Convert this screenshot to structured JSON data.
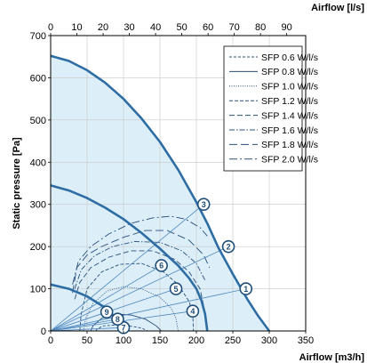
{
  "chart_data": {
    "type": "line",
    "x_bottom": {
      "label": "Airflow [m3/h]",
      "range": [
        0,
        350
      ],
      "ticks": [
        0,
        50,
        100,
        150,
        200,
        250,
        300,
        350
      ]
    },
    "x_top": {
      "label": "Airflow [l/s]",
      "range": [
        0,
        97.22
      ],
      "ticks": [
        0,
        10,
        20,
        30,
        40,
        50,
        60,
        70,
        80,
        90
      ]
    },
    "y": {
      "label": "Static pressure [Pa]",
      "range": [
        0,
        700
      ],
      "ticks": [
        0,
        100,
        200,
        300,
        400,
        500,
        600,
        700
      ]
    },
    "grid": true,
    "legend_position": "top-right",
    "area_fill": "#dceff9",
    "curve_color": "#2e6da4",
    "fan_curves": [
      {
        "points": [
          [
            0,
            652
          ],
          [
            25,
            640
          ],
          [
            50,
            618
          ],
          [
            75,
            588
          ],
          [
            100,
            550
          ],
          [
            125,
            503
          ],
          [
            150,
            448
          ],
          [
            175,
            382
          ],
          [
            200,
            305
          ],
          [
            215,
            255
          ],
          [
            230,
            198
          ],
          [
            250,
            135
          ],
          [
            270,
            75
          ],
          [
            285,
            35
          ],
          [
            300,
            0
          ]
        ]
      },
      {
        "points": [
          [
            0,
            345
          ],
          [
            25,
            333
          ],
          [
            50,
            315
          ],
          [
            75,
            292
          ],
          [
            100,
            265
          ],
          [
            125,
            232
          ],
          [
            150,
            195
          ],
          [
            175,
            155
          ],
          [
            190,
            125
          ],
          [
            200,
            100
          ],
          [
            207,
            72
          ],
          [
            212,
            40
          ],
          [
            215,
            0
          ]
        ]
      },
      {
        "points": [
          [
            0,
            110
          ],
          [
            25,
            100
          ],
          [
            50,
            82
          ],
          [
            75,
            55
          ],
          [
            90,
            30
          ],
          [
            98,
            10
          ],
          [
            100,
            0
          ]
        ]
      }
    ],
    "operating_lines": [
      {
        "points": [
          [
            0,
            0
          ],
          [
            268,
            100
          ]
        ]
      },
      {
        "points": [
          [
            0,
            0
          ],
          [
            244,
            200
          ]
        ]
      },
      {
        "points": [
          [
            0,
            0
          ],
          [
            210,
            300
          ]
        ]
      },
      {
        "points": [
          [
            0,
            0
          ],
          [
            195,
            47
          ]
        ]
      },
      {
        "points": [
          [
            0,
            0
          ],
          [
            172,
            100
          ]
        ]
      },
      {
        "points": [
          [
            0,
            0
          ],
          [
            152,
            155
          ]
        ]
      },
      {
        "points": [
          [
            0,
            0
          ],
          [
            100,
            8
          ]
        ]
      },
      {
        "points": [
          [
            0,
            0
          ],
          [
            92,
            28
          ]
        ]
      },
      {
        "points": [
          [
            0,
            0
          ],
          [
            77,
            45
          ]
        ]
      }
    ],
    "operating_points": [
      {
        "label": "1",
        "x": 268,
        "y": 100
      },
      {
        "label": "2",
        "x": 244,
        "y": 200
      },
      {
        "label": "3",
        "x": 210,
        "y": 300
      },
      {
        "label": "4",
        "x": 195,
        "y": 47
      },
      {
        "label": "5",
        "x": 172,
        "y": 100
      },
      {
        "label": "6",
        "x": 152,
        "y": 155
      },
      {
        "label": "7",
        "x": 100,
        "y": 8
      },
      {
        "label": "8",
        "x": 92,
        "y": 28
      },
      {
        "label": "9",
        "x": 77,
        "y": 45
      }
    ],
    "series": [
      {
        "name": "SFP 0.6 W/l/s",
        "dash": "3,2",
        "width": 0.9,
        "points": [
          [
            62,
            0
          ],
          [
            64,
            5
          ],
          [
            72,
            12
          ],
          [
            88,
            14
          ],
          [
            108,
            12
          ],
          [
            125,
            7
          ],
          [
            133,
            0
          ]
        ]
      },
      {
        "name": "SFP 0.8 W/l/s",
        "dash": "",
        "width": 0.9,
        "points": [
          [
            55,
            0
          ],
          [
            58,
            12
          ],
          [
            70,
            30
          ],
          [
            90,
            40
          ],
          [
            110,
            38
          ],
          [
            130,
            28
          ],
          [
            145,
            12
          ],
          [
            152,
            0
          ]
        ]
      },
      {
        "name": "SFP 1.0 W/l/s",
        "dash": "1,1.5",
        "width": 0.9,
        "points": [
          [
            45,
            0
          ],
          [
            48,
            30
          ],
          [
            58,
            65
          ],
          [
            78,
            95
          ],
          [
            100,
            105
          ],
          [
            125,
            100
          ],
          [
            150,
            80
          ],
          [
            165,
            55
          ],
          [
            172,
            30
          ],
          [
            175,
            0
          ]
        ]
      },
      {
        "name": "SFP 1.2 W/l/s",
        "dash": "4,2",
        "width": 0.9,
        "points": [
          [
            40,
            0
          ],
          [
            42,
            40
          ],
          [
            50,
            100
          ],
          [
            70,
            140
          ],
          [
            95,
            158
          ],
          [
            125,
            160
          ],
          [
            155,
            140
          ],
          [
            175,
            110
          ],
          [
            190,
            70
          ],
          [
            195,
            40
          ],
          [
            196,
            0
          ]
        ]
      },
      {
        "name": "SFP 1.4 W/l/s",
        "dash": "6,3",
        "width": 0.9,
        "points": [
          [
            33,
            75
          ],
          [
            40,
            115
          ],
          [
            55,
            150
          ],
          [
            80,
            175
          ],
          [
            110,
            190
          ],
          [
            140,
            190
          ],
          [
            170,
            170
          ],
          [
            190,
            140
          ],
          [
            205,
            100
          ],
          [
            210,
            60
          ]
        ]
      },
      {
        "name": "SFP 1.6 W/l/s",
        "dash": "6,2,1.5,2",
        "width": 0.9,
        "points": [
          [
            33,
            100
          ],
          [
            42,
            145
          ],
          [
            60,
            178
          ],
          [
            85,
            200
          ],
          [
            115,
            212
          ],
          [
            150,
            210
          ],
          [
            180,
            190
          ],
          [
            200,
            160
          ],
          [
            212,
            120
          ]
        ]
      },
      {
        "name": "SFP 1.8 W/l/s",
        "dash": "9,4",
        "width": 0.9,
        "points": [
          [
            30,
            90
          ],
          [
            36,
            150
          ],
          [
            50,
            180
          ],
          [
            70,
            200
          ],
          [
            100,
            222
          ],
          [
            130,
            238
          ],
          [
            160,
            238
          ],
          [
            190,
            215
          ],
          [
            210,
            180
          ],
          [
            218,
            150
          ]
        ]
      },
      {
        "name": "SFP 2.0 W/l/s",
        "dash": "9,3,2,3",
        "width": 0.9,
        "points": [
          [
            30,
            110
          ],
          [
            38,
            165
          ],
          [
            55,
            200
          ],
          [
            80,
            230
          ],
          [
            110,
            255
          ],
          [
            140,
            268
          ],
          [
            165,
            272
          ],
          [
            185,
            265
          ],
          [
            205,
            245
          ],
          [
            215,
            225
          ]
        ]
      }
    ]
  }
}
